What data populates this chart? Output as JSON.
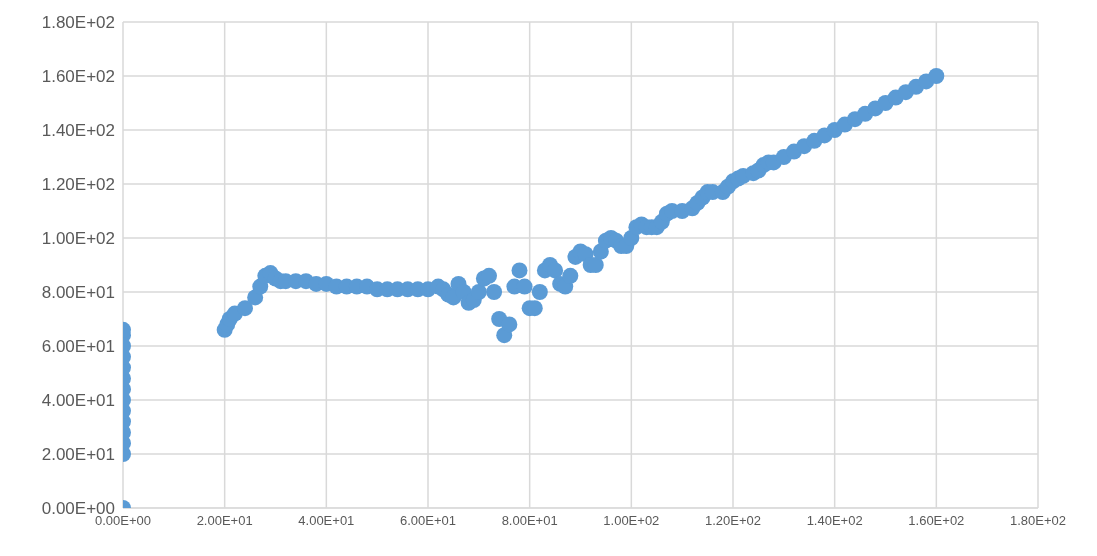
{
  "chart_data": {
    "type": "scatter",
    "color": "#5b9bd5",
    "marker": "circle",
    "grid": true,
    "legend": false,
    "x": [
      0,
      0,
      0,
      0,
      0,
      0,
      0,
      0,
      0,
      0,
      0,
      0,
      0,
      0,
      20,
      20.5,
      21,
      22,
      24,
      26,
      27,
      28,
      29,
      30,
      31,
      32,
      34,
      36,
      38,
      40,
      42,
      44,
      46,
      48,
      50,
      52,
      54,
      56,
      58,
      60,
      62,
      63,
      64,
      65,
      66,
      67,
      68,
      69,
      70,
      71,
      72,
      73,
      74,
      75,
      76,
      77,
      78,
      79,
      80,
      81,
      82,
      83,
      84,
      85,
      86,
      87,
      88,
      89,
      90,
      91,
      92,
      93,
      94,
      95,
      96,
      97,
      98,
      99,
      100,
      101,
      102,
      103,
      104,
      105,
      106,
      107,
      108,
      110,
      112,
      113,
      114,
      115,
      116,
      118,
      119,
      120,
      121,
      122,
      124,
      125,
      126,
      127,
      128,
      130,
      132,
      134,
      136,
      138,
      140,
      142,
      144,
      146,
      148,
      150,
      152,
      154,
      156,
      158,
      160
    ],
    "values": [
      0,
      20,
      24,
      28,
      32,
      36,
      40,
      44,
      48,
      52,
      56,
      60,
      64,
      66,
      66,
      68,
      70,
      72,
      74,
      78,
      82,
      86,
      87,
      85,
      84,
      84,
      84,
      84,
      83,
      83,
      82,
      82,
      82,
      82,
      81,
      81,
      81,
      81,
      81,
      81,
      82,
      81,
      79,
      78,
      83,
      80,
      76,
      77,
      80,
      85,
      86,
      80,
      70,
      64,
      68,
      82,
      88,
      82,
      74,
      74,
      80,
      88,
      90,
      88,
      83,
      82,
      86,
      93,
      95,
      94,
      90,
      90,
      95,
      99,
      100,
      99,
      97,
      97,
      100,
      104,
      105,
      104,
      104,
      104,
      106,
      109,
      110,
      110,
      111,
      113,
      115,
      117,
      117,
      117,
      119,
      121,
      122,
      123,
      124,
      125,
      127,
      128,
      128,
      130,
      132,
      134,
      136,
      138,
      140,
      142,
      144,
      146,
      148,
      150,
      152,
      154,
      156,
      158,
      160
    ],
    "xlim": [
      0,
      180
    ],
    "ylim": [
      0,
      180
    ],
    "xticks": [
      {
        "value": 0,
        "label": "0.00E+00"
      },
      {
        "value": 20,
        "label": "2.00E+01"
      },
      {
        "value": 40,
        "label": "4.00E+01"
      },
      {
        "value": 60,
        "label": "6.00E+01"
      },
      {
        "value": 80,
        "label": "8.00E+01"
      },
      {
        "value": 100,
        "label": "1.00E+02"
      },
      {
        "value": 120,
        "label": "1.20E+02"
      },
      {
        "value": 140,
        "label": "1.40E+02"
      },
      {
        "value": 160,
        "label": "1.60E+02"
      },
      {
        "value": 180,
        "label": "1.80E+02"
      }
    ],
    "yticks": [
      {
        "value": 0,
        "label": "0.00E+00"
      },
      {
        "value": 20,
        "label": "2.00E+01"
      },
      {
        "value": 40,
        "label": "4.00E+01"
      },
      {
        "value": 60,
        "label": "6.00E+01"
      },
      {
        "value": 80,
        "label": "8.00E+01"
      },
      {
        "value": 100,
        "label": "1.00E+02"
      },
      {
        "value": 120,
        "label": "1.20E+02"
      },
      {
        "value": 140,
        "label": "1.40E+02"
      },
      {
        "value": 160,
        "label": "1.60E+02"
      },
      {
        "value": 180,
        "label": "1.80E+02"
      }
    ]
  }
}
